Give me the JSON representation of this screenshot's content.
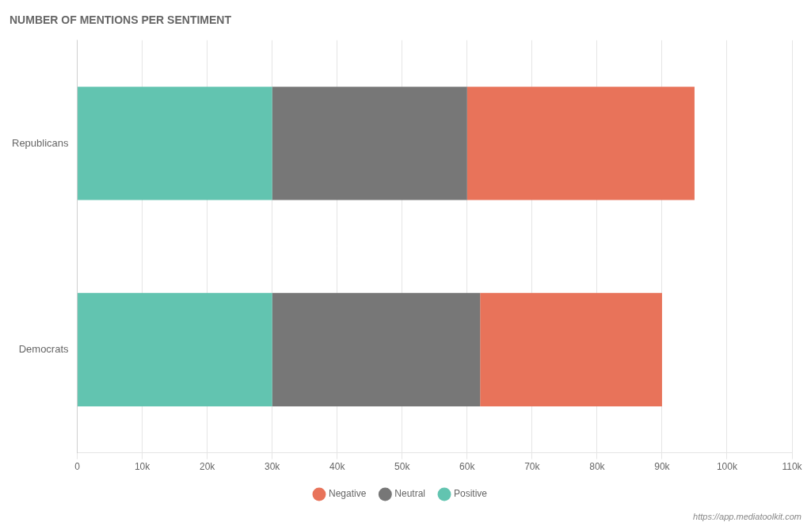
{
  "chart_data": {
    "type": "bar",
    "orientation": "horizontal",
    "stacked": true,
    "title": "NUMBER OF MENTIONS PER SENTIMENT",
    "categories": [
      "Republicans",
      "Democrats"
    ],
    "series": [
      {
        "name": "Positive",
        "color": "#62C4B0",
        "values": [
          30000,
          30000
        ]
      },
      {
        "name": "Neutral",
        "color": "#777777",
        "values": [
          30000,
          32000
        ]
      },
      {
        "name": "Negative",
        "color": "#E8735A",
        "values": [
          35000,
          28000
        ]
      }
    ],
    "xlim": [
      0,
      110000
    ],
    "xticks": [
      0,
      {
        "value": 10000,
        "label": "10k"
      },
      {
        "value": 20000,
        "label": "20k"
      },
      {
        "value": 30000,
        "label": "30k"
      },
      {
        "value": 40000,
        "label": "40k"
      },
      {
        "value": 50000,
        "label": "50k"
      },
      {
        "value": 60000,
        "label": "60k"
      },
      {
        "value": 70000,
        "label": "70k"
      },
      {
        "value": 80000,
        "label": "80k"
      },
      {
        "value": 90000,
        "label": "90k"
      },
      {
        "value": 100000,
        "label": "100k"
      },
      {
        "value": 110000,
        "label": "110k"
      }
    ],
    "grid": true,
    "legend": "bottom",
    "annotations": [
      "https://app.mediatoolkit.com"
    ]
  }
}
